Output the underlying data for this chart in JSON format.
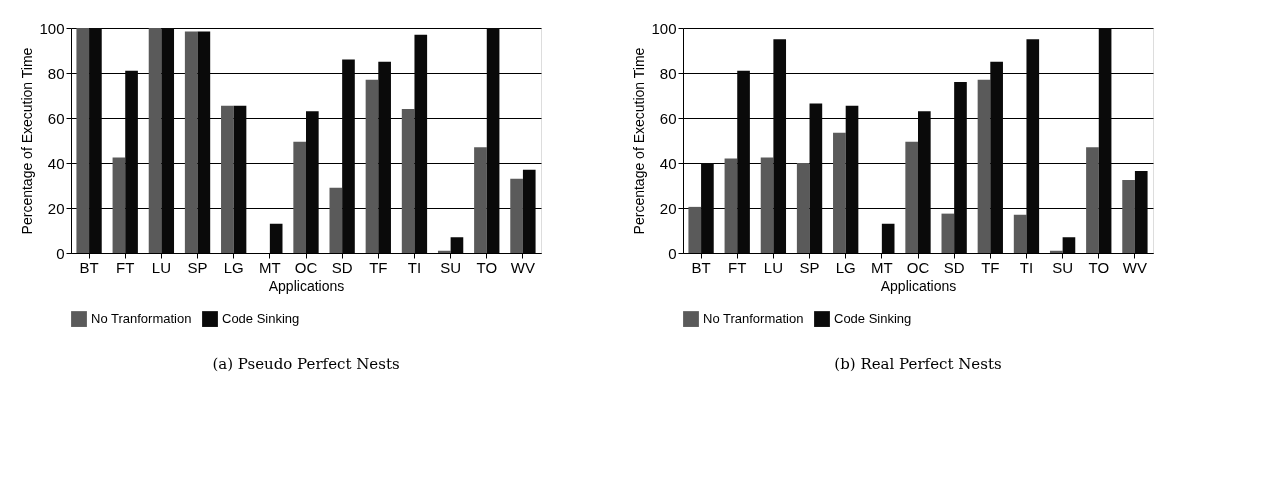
{
  "chart_data": [
    {
      "type": "bar",
      "xlabel": "Applications",
      "ylabel": "Percentage of Execution Time",
      "categories": [
        "BT",
        "FT",
        "LU",
        "SP",
        "LG",
        "MT",
        "OC",
        "SD",
        "TF",
        "TI",
        "SU",
        "TO",
        "WV"
      ],
      "series": [
        {
          "name": "No Tranformation",
          "color": "#5a5a5a",
          "values": [
            100,
            42.5,
            100,
            98.5,
            65.5,
            0,
            49.5,
            29,
            77,
            64,
            1,
            47,
            33
          ]
        },
        {
          "name": "Code Sinking",
          "color": "#0a0a0a",
          "values": [
            100,
            81,
            100,
            98.5,
            65.5,
            13,
            63,
            86,
            85,
            97,
            7,
            100,
            37
          ]
        }
      ],
      "ylim": [
        0,
        100
      ],
      "yticks": [
        0,
        20,
        40,
        60,
        80,
        100
      ],
      "grid": "y",
      "legend": "bottom",
      "annotations": [
        "(a) Pseudo Perfect Nests"
      ]
    },
    {
      "type": "bar",
      "xlabel": "Applications",
      "ylabel": "Percentage of Execution Time",
      "categories": [
        "BT",
        "FT",
        "LU",
        "SP",
        "LG",
        "MT",
        "OC",
        "SD",
        "TF",
        "TI",
        "SU",
        "TO",
        "WV"
      ],
      "series": [
        {
          "name": "No Tranformation",
          "color": "#5a5a5a",
          "values": [
            20.5,
            42,
            42.5,
            40,
            53.5,
            0,
            49.5,
            17.5,
            77,
            17,
            1,
            47,
            32.5
          ]
        },
        {
          "name": "Code Sinking",
          "color": "#0a0a0a",
          "values": [
            40,
            81,
            95,
            66.5,
            65.5,
            13,
            63,
            76,
            85,
            95,
            7,
            100,
            36.5
          ]
        }
      ],
      "ylim": [
        0,
        100
      ],
      "yticks": [
        0,
        20,
        40,
        60,
        80,
        100
      ],
      "grid": "y",
      "legend": "bottom",
      "annotations": [
        "(b) Real Perfect Nests"
      ]
    }
  ]
}
